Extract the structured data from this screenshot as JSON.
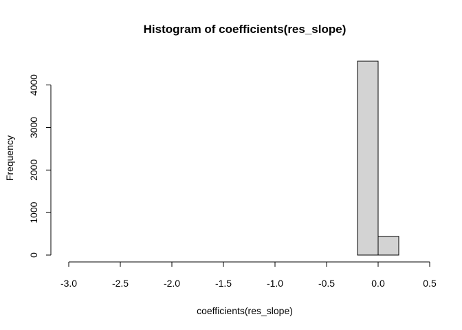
{
  "chart_data": {
    "type": "bar",
    "title": "Histogram of coefficients(res_slope)",
    "xlabel": "coefficients(res_slope)",
    "ylabel": "Frequency",
    "bins": [
      {
        "start": -3.0,
        "end": -2.8,
        "count": 0
      },
      {
        "start": -2.8,
        "end": -2.6,
        "count": 0
      },
      {
        "start": -2.6,
        "end": -2.4,
        "count": 0
      },
      {
        "start": -2.4,
        "end": -2.2,
        "count": 0
      },
      {
        "start": -2.2,
        "end": -2.0,
        "count": 0
      },
      {
        "start": -2.0,
        "end": -1.8,
        "count": 0
      },
      {
        "start": -1.8,
        "end": -1.6,
        "count": 0
      },
      {
        "start": -1.6,
        "end": -1.4,
        "count": 0
      },
      {
        "start": -1.4,
        "end": -1.2,
        "count": 0
      },
      {
        "start": -1.2,
        "end": -1.0,
        "count": 0
      },
      {
        "start": -1.0,
        "end": -0.8,
        "count": 0
      },
      {
        "start": -0.8,
        "end": -0.6,
        "count": 0
      },
      {
        "start": -0.6,
        "end": -0.4,
        "count": 0
      },
      {
        "start": -0.4,
        "end": -0.2,
        "count": 0
      },
      {
        "start": -0.2,
        "end": 0.0,
        "count": 4560
      },
      {
        "start": 0.0,
        "end": 0.2,
        "count": 440
      },
      {
        "start": 0.2,
        "end": 0.4,
        "count": 0
      }
    ],
    "xlim": [
      -3.0,
      0.5
    ],
    "ylim": [
      0,
      4560
    ],
    "x_ticks": [
      "-3.0",
      "-2.5",
      "-2.0",
      "-1.5",
      "-1.0",
      "-0.5",
      "0.0",
      "0.5"
    ],
    "y_ticks": [
      "0",
      "1000",
      "2000",
      "3000",
      "4000"
    ],
    "bar_fill": "#d3d3d3",
    "bar_stroke": "#000000",
    "grid": false,
    "legend": "none"
  }
}
